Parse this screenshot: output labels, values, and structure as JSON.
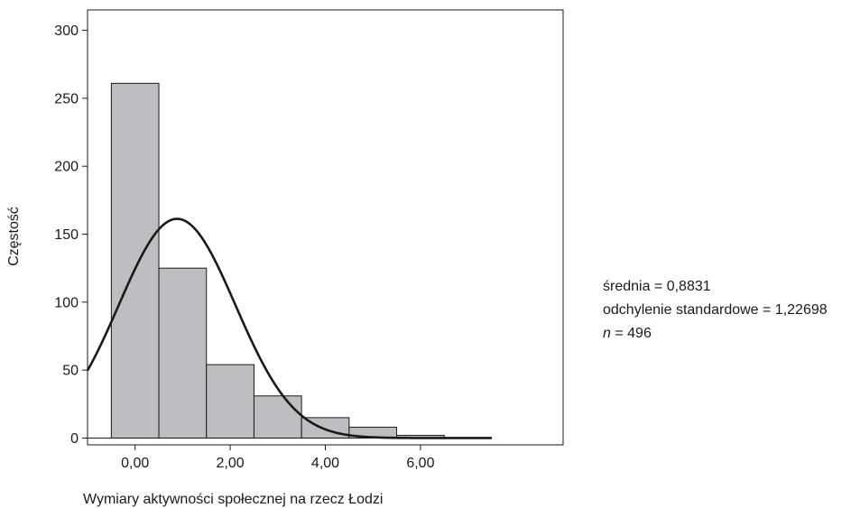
{
  "chart_data": {
    "type": "bar",
    "subtype": "histogram",
    "xlabel": "Wymiary aktywności społecznej na rzecz Łodzi",
    "ylabel": "Częstość",
    "x_tick_labels": [
      "0,00",
      "2,00",
      "4,00",
      "6,00"
    ],
    "x_ticks": [
      0,
      2,
      4,
      6
    ],
    "y_ticks": [
      0,
      50,
      100,
      150,
      200,
      250,
      300
    ],
    "xlim": [
      -1,
      9
    ],
    "ylim": [
      -5,
      315
    ],
    "bins": [
      {
        "x_start": -0.5,
        "x_end": 0.5,
        "value": 261
      },
      {
        "x_start": 0.5,
        "x_end": 1.5,
        "value": 125
      },
      {
        "x_start": 1.5,
        "x_end": 2.5,
        "value": 54
      },
      {
        "x_start": 2.5,
        "x_end": 3.5,
        "value": 31
      },
      {
        "x_start": 3.5,
        "x_end": 4.5,
        "value": 15
      },
      {
        "x_start": 4.5,
        "x_end": 5.5,
        "value": 8
      },
      {
        "x_start": 5.5,
        "x_end": 6.5,
        "value": 2
      }
    ],
    "normal_curve": {
      "mean": 0.8831,
      "sd": 1.22698,
      "n": 496,
      "bin_width": 1
    },
    "bar_color": "#bdbec2",
    "curve_color": "#1a1a1a",
    "grid": false
  },
  "stats": {
    "mean_text": "średnia = 0,8831",
    "sd_text": "odchylenie standardowe = 1,22698",
    "n_symbol": "n",
    "n_text": " = 496"
  }
}
